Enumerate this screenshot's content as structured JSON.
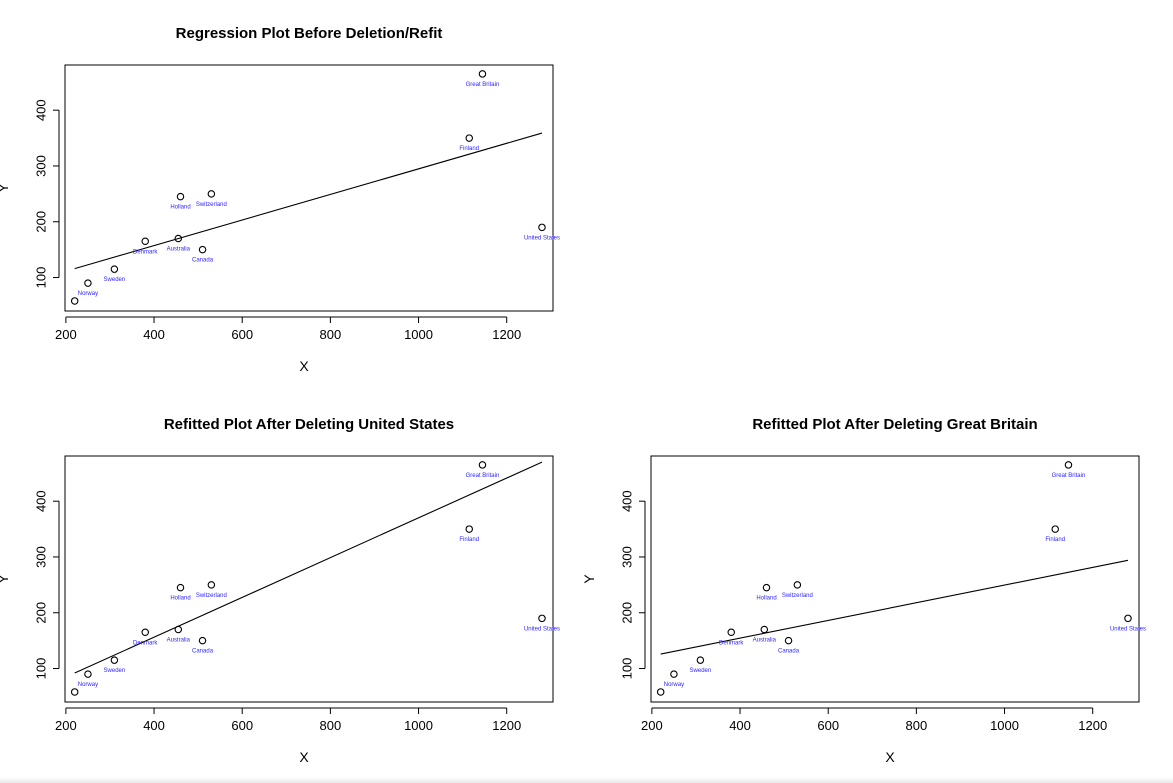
{
  "chart_data": [
    {
      "type": "scatter",
      "title": "Regression Plot Before Deletion/Refit",
      "xlabel": "X",
      "ylabel": "Y",
      "xlim": [
        198,
        1305
      ],
      "ylim": [
        40,
        481
      ],
      "xticks": [
        200,
        400,
        600,
        800,
        1000,
        1200
      ],
      "yticks": [
        100,
        200,
        300,
        400
      ],
      "grid": false,
      "points": [
        {
          "label": "Norway",
          "x": 250,
          "y": 90
        },
        {
          "label": "",
          "x": 220,
          "y": 58
        },
        {
          "label": "Sweden",
          "x": 310,
          "y": 115
        },
        {
          "label": "Denmark",
          "x": 380,
          "y": 165
        },
        {
          "label": "Australia",
          "x": 455,
          "y": 170
        },
        {
          "label": "Holland",
          "x": 460,
          "y": 245
        },
        {
          "label": "Switzerland",
          "x": 530,
          "y": 250
        },
        {
          "label": "Canada",
          "x": 510,
          "y": 150
        },
        {
          "label": "Finland",
          "x": 1115,
          "y": 350
        },
        {
          "label": "Great Britain",
          "x": 1145,
          "y": 465
        },
        {
          "label": "United States",
          "x": 1280,
          "y": 190
        }
      ],
      "fit_line": {
        "x": [
          220,
          1280
        ],
        "y": [
          116,
          359
        ]
      }
    },
    {
      "type": "scatter",
      "title": "Refitted Plot After Deleting United States",
      "xlabel": "X",
      "ylabel": "Y",
      "xlim": [
        198,
        1305
      ],
      "ylim": [
        40,
        481
      ],
      "xticks": [
        200,
        400,
        600,
        800,
        1000,
        1200
      ],
      "yticks": [
        100,
        200,
        300,
        400
      ],
      "grid": false,
      "points": [
        {
          "label": "Norway",
          "x": 250,
          "y": 90
        },
        {
          "label": "",
          "x": 220,
          "y": 58
        },
        {
          "label": "Sweden",
          "x": 310,
          "y": 115
        },
        {
          "label": "Denmark",
          "x": 380,
          "y": 165
        },
        {
          "label": "Australia",
          "x": 455,
          "y": 170
        },
        {
          "label": "Holland",
          "x": 460,
          "y": 245
        },
        {
          "label": "Switzerland",
          "x": 530,
          "y": 250
        },
        {
          "label": "Canada",
          "x": 510,
          "y": 150
        },
        {
          "label": "Finland",
          "x": 1115,
          "y": 350
        },
        {
          "label": "Great Britain",
          "x": 1145,
          "y": 465
        },
        {
          "label": "United States",
          "x": 1280,
          "y": 190
        }
      ],
      "fit_line": {
        "x": [
          220,
          1280
        ],
        "y": [
          92,
          470
        ]
      }
    },
    {
      "type": "scatter",
      "title": "Refitted Plot After Deleting Great Britain",
      "xlabel": "X",
      "ylabel": "Y",
      "xlim": [
        198,
        1305
      ],
      "ylim": [
        40,
        481
      ],
      "xticks": [
        200,
        400,
        600,
        800,
        1000,
        1200
      ],
      "yticks": [
        100,
        200,
        300,
        400
      ],
      "grid": false,
      "points": [
        {
          "label": "Norway",
          "x": 250,
          "y": 90
        },
        {
          "label": "",
          "x": 220,
          "y": 58
        },
        {
          "label": "Sweden",
          "x": 310,
          "y": 115
        },
        {
          "label": "Denmark",
          "x": 380,
          "y": 165
        },
        {
          "label": "Australia",
          "x": 455,
          "y": 170
        },
        {
          "label": "Holland",
          "x": 460,
          "y": 245
        },
        {
          "label": "Switzerland",
          "x": 530,
          "y": 250
        },
        {
          "label": "Canada",
          "x": 510,
          "y": 150
        },
        {
          "label": "Finland",
          "x": 1115,
          "y": 350
        },
        {
          "label": "Great Britain",
          "x": 1145,
          "y": 465
        },
        {
          "label": "United States",
          "x": 1280,
          "y": 190
        }
      ],
      "fit_line": {
        "x": [
          220,
          1280
        ],
        "y": [
          126,
          294
        ]
      }
    }
  ],
  "colors": {
    "point_label": "#2a1fff",
    "axis": "#000000",
    "fit_line": "#000000"
  }
}
